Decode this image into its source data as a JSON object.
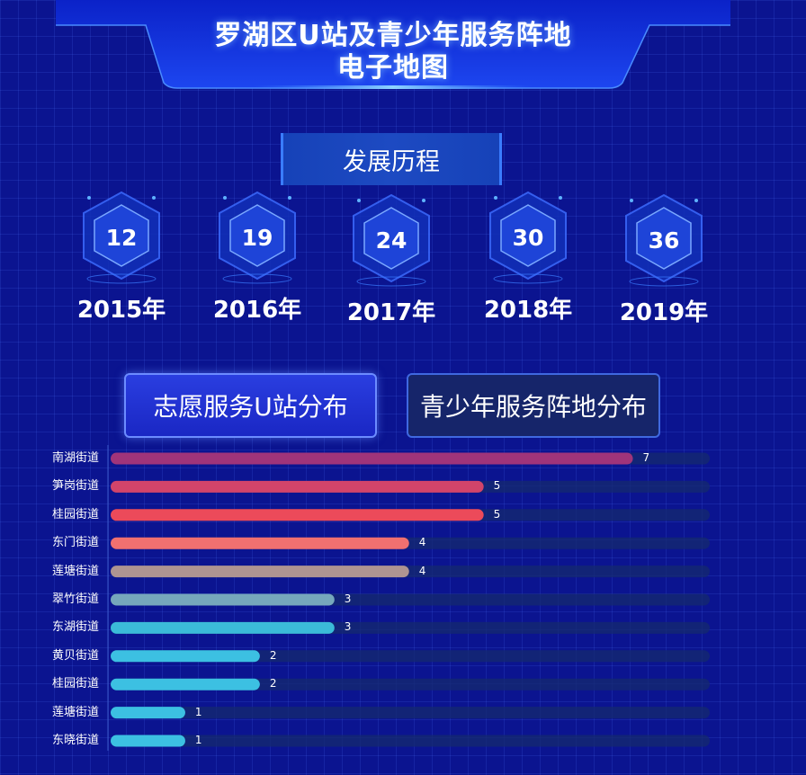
{
  "header": {
    "title_line1": "罗湖区U站及青少年服务阵地",
    "title_line2": "电子地图"
  },
  "section": {
    "title": "发展历程"
  },
  "timeline": [
    {
      "value": "12",
      "year": "2015年"
    },
    {
      "value": "19",
      "year": "2016年"
    },
    {
      "value": "24",
      "year": "2017年"
    },
    {
      "value": "30",
      "year": "2018年"
    },
    {
      "value": "36",
      "year": "2019年"
    }
  ],
  "tabs": [
    {
      "label": "志愿服务U站分布",
      "active": true
    },
    {
      "label": "青少年服务阵地分布",
      "active": false
    }
  ],
  "colors": {
    "background": "#0b1490",
    "bar_track": "#162a6e"
  },
  "chart_data": {
    "type": "bar",
    "orientation": "horizontal",
    "categories": [
      "南湖街道",
      "笋岗街道",
      "桂园街道",
      "东门街道",
      "莲塘街道",
      "翠竹街道",
      "东湖街道",
      "黄贝街道",
      "桂园街道",
      "莲塘街道",
      "东晓街道"
    ],
    "values": [
      7,
      5,
      5,
      4,
      4,
      3,
      3,
      2,
      2,
      1,
      1
    ],
    "value_labels": [
      "7",
      "5",
      "5",
      "4",
      "4",
      "3",
      "3",
      "2",
      "2",
      "1",
      "1"
    ],
    "bar_colors": [
      "#a0347a",
      "#d2446a",
      "#ec4a5a",
      "#f07070",
      "#ae9492",
      "#76a8bc",
      "#3bbbd8",
      "#3cc0e2",
      "#3cc0e2",
      "#3cc0e2",
      "#3cc0e2"
    ],
    "xlim": [
      0,
      7.5
    ],
    "title": "",
    "xlabel": "",
    "ylabel": ""
  }
}
